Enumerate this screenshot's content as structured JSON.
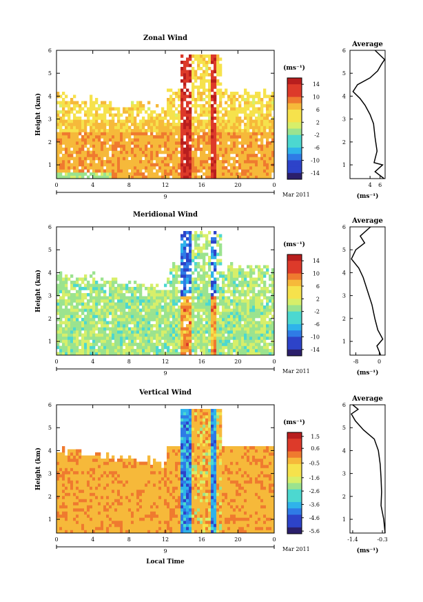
{
  "chart_data": [
    {
      "type": "heatmap",
      "title": "Zonal Wind",
      "xlabel": "",
      "ylabel": "Height (km)",
      "xlim": [
        0,
        24
      ],
      "ylim": [
        0.4,
        6
      ],
      "x_ticks": [
        "0",
        "4",
        "8",
        "12",
        "16",
        "20",
        "0"
      ],
      "y_ticks": [
        "1",
        "2",
        "3",
        "4",
        "5",
        "6"
      ],
      "date_label": "9",
      "month_label": "Mar 2011",
      "colorbar": {
        "unit": "(ms⁻¹)",
        "range": [
          -16,
          16
        ],
        "ticks": [
          "14",
          "10",
          "6",
          "2",
          "-2",
          "-6",
          "-10",
          "-14"
        ]
      },
      "average_profile": {
        "title": "Average",
        "xlabel": "(ms⁻¹)",
        "xlim": [
          0,
          7
        ],
        "x_ticks": [
          "4",
          "6"
        ],
        "points": [
          [
            6.8,
            0.4
          ],
          [
            5.0,
            0.7
          ],
          [
            6.5,
            1.0
          ],
          [
            4.8,
            1.1
          ],
          [
            5.4,
            1.6
          ],
          [
            5.0,
            2.2
          ],
          [
            4.7,
            2.8
          ],
          [
            4.0,
            3.2
          ],
          [
            3.0,
            3.6
          ],
          [
            2.0,
            3.9
          ],
          [
            0.6,
            4.2
          ],
          [
            1.5,
            4.5
          ],
          [
            4.0,
            4.8
          ],
          [
            5.5,
            5.1
          ],
          [
            6.3,
            5.4
          ],
          [
            6.9,
            5.6
          ],
          [
            5.0,
            6.0
          ]
        ]
      }
    },
    {
      "type": "heatmap",
      "title": "Meridional Wind",
      "xlabel": "",
      "ylabel": "Height (km)",
      "xlim": [
        0,
        24
      ],
      "ylim": [
        0.4,
        6
      ],
      "x_ticks": [
        "0",
        "4",
        "8",
        "12",
        "16",
        "20",
        "0"
      ],
      "y_ticks": [
        "1",
        "2",
        "3",
        "4",
        "5",
        "6"
      ],
      "date_label": "9",
      "month_label": "Mar 2011",
      "colorbar": {
        "unit": "(ms⁻¹)",
        "range": [
          -16,
          16
        ],
        "ticks": [
          "14",
          "10",
          "6",
          "2",
          "-2",
          "-6",
          "-10",
          "-14"
        ]
      },
      "average_profile": {
        "title": "Average",
        "xlabel": "(ms⁻¹)",
        "xlim": [
          -10,
          2
        ],
        "x_ticks": [
          "-8",
          "0"
        ],
        "points": [
          [
            0.5,
            0.4
          ],
          [
            -0.8,
            0.8
          ],
          [
            1.2,
            1.1
          ],
          [
            -0.5,
            1.5
          ],
          [
            -1.5,
            2.0
          ],
          [
            -2.5,
            2.6
          ],
          [
            -4.0,
            3.2
          ],
          [
            -5.5,
            3.8
          ],
          [
            -7.0,
            4.2
          ],
          [
            -9.5,
            4.6
          ],
          [
            -8.0,
            5.0
          ],
          [
            -5.0,
            5.3
          ],
          [
            -6.5,
            5.6
          ],
          [
            -3.0,
            6.0
          ]
        ]
      }
    },
    {
      "type": "heatmap",
      "title": "Vertical Wind",
      "xlabel": "Local Time",
      "ylabel": "Height (km)",
      "xlim": [
        0,
        24
      ],
      "ylim": [
        0.4,
        6
      ],
      "x_ticks": [
        "0",
        "4",
        "8",
        "12",
        "16",
        "20",
        "0"
      ],
      "y_ticks": [
        "1",
        "2",
        "3",
        "4",
        "5",
        "6"
      ],
      "date_label": "9",
      "month_label": "Mar 2011",
      "colorbar": {
        "unit": "(ms⁻¹)",
        "range": [
          -5.8,
          1.8
        ],
        "ticks": [
          "1.5",
          "0.6",
          "-0.5",
          "-1.6",
          "-2.6",
          "-3.6",
          "-4.6",
          "-5.6"
        ]
      },
      "average_profile": {
        "title": "Average",
        "xlabel": "(ms⁻¹)",
        "xlim": [
          -1.5,
          -0.2
        ],
        "x_ticks": [
          "-1.4",
          "-0.3"
        ],
        "points": [
          [
            -0.2,
            0.4
          ],
          [
            -0.25,
            1.0
          ],
          [
            -0.35,
            1.6
          ],
          [
            -0.33,
            2.2
          ],
          [
            -0.35,
            2.8
          ],
          [
            -0.38,
            3.4
          ],
          [
            -0.45,
            4.0
          ],
          [
            -0.6,
            4.5
          ],
          [
            -1.0,
            4.9
          ],
          [
            -1.3,
            5.3
          ],
          [
            -1.45,
            5.6
          ],
          [
            -1.2,
            5.8
          ],
          [
            -1.4,
            6.0
          ]
        ]
      }
    }
  ]
}
